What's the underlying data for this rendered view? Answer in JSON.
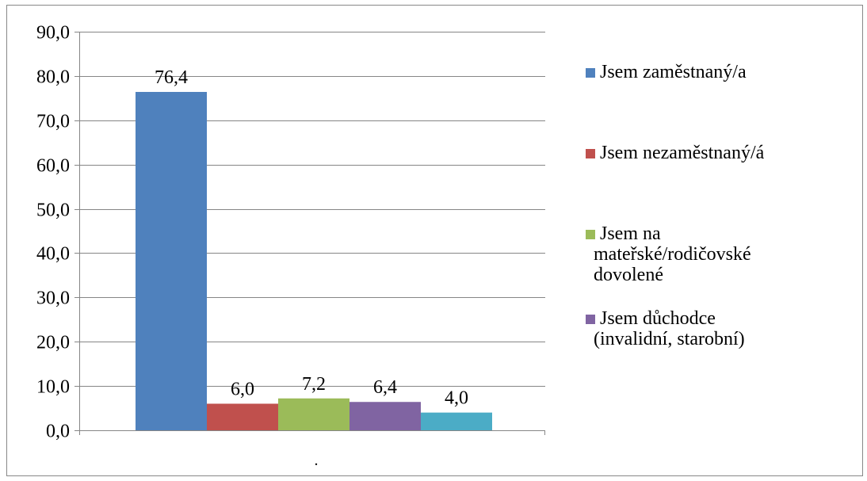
{
  "chart_data": {
    "type": "bar",
    "title": "",
    "xlabel": ".",
    "ylabel": "",
    "ylim": [
      0,
      90
    ],
    "ytick_step": 10,
    "ytick_labels": [
      "0,0",
      "10,0",
      "20,0",
      "30,0",
      "40,0",
      "50,0",
      "60,0",
      "70,0",
      "80,0",
      "90,0"
    ],
    "grid": true,
    "legend_position": "right",
    "series": [
      {
        "name": "Jsem zaměstnaný/a",
        "value": 76.4,
        "label": "76,4",
        "color": "#4F81BD"
      },
      {
        "name": "Jsem nezaměstnaný/á",
        "value": 6.0,
        "label": "6,0",
        "color": "#C0504D"
      },
      {
        "name": "Jsem na mateřské/rodičovské dovolené",
        "value": 7.2,
        "label": "7,2",
        "color": "#9BBB59"
      },
      {
        "name": "Jsem důchodce (invalidní, starobní)",
        "value": 6.4,
        "label": "6,4",
        "color": "#8064A2"
      },
      {
        "name": "",
        "value": 4.0,
        "label": "4,0",
        "color": "#4BACC6"
      }
    ],
    "legend": [
      {
        "lines": [
          "Jsem zaměstnaný/a"
        ],
        "color": "#4F81BD"
      },
      {
        "lines": [
          "Jsem nezaměstnaný/á"
        ],
        "color": "#C0504D"
      },
      {
        "lines": [
          "Jsem na",
          "mateřské/rodičovské",
          "dovolené"
        ],
        "color": "#9BBB59"
      },
      {
        "lines": [
          "Jsem důchodce",
          "(invalidní, starobní)"
        ],
        "color": "#8064A2"
      }
    ]
  }
}
